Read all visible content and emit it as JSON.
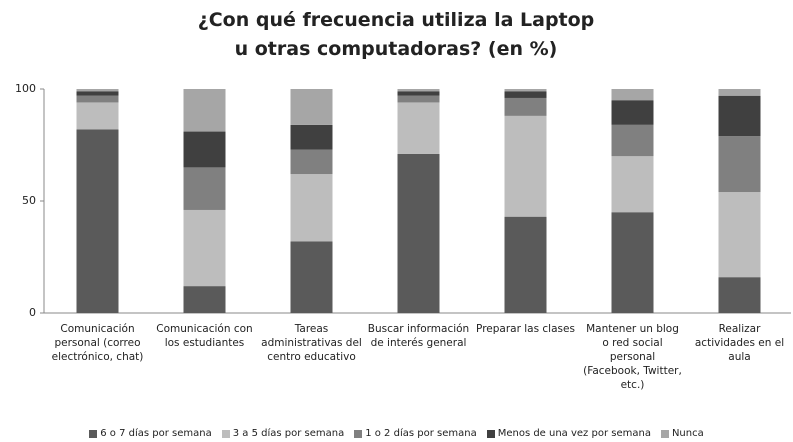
{
  "chart_data": {
    "type": "stacked_bar",
    "title": "¿Con qué frecuencia utiliza la Laptop u otras computadoras? (en %)",
    "categories": [
      "Comunicación personal (correo electrónico, chat)",
      "Comunicación con los estudiantes",
      "Tareas administrativas del centro educativo",
      "Buscar información de interés general",
      "Preparar las clases",
      "Mantener un blog o red social personal (Facebook, Twitter, etc.)",
      "Realizar actividades en el aula"
    ],
    "series": [
      {
        "name": "6 o 7 días por semana",
        "color": "#5a5a5a",
        "values": [
          82,
          12,
          32,
          71,
          43,
          45,
          16
        ]
      },
      {
        "name": "3 a 5 días por semana",
        "color": "#bdbdbd",
        "values": [
          12,
          34,
          30,
          23,
          45,
          25,
          38
        ]
      },
      {
        "name": "1 o 2 días por semana",
        "color": "#808080",
        "values": [
          3,
          19,
          11,
          3,
          8,
          14,
          25
        ]
      },
      {
        "name": "Menos de una vez por semana",
        "color": "#404040",
        "values": [
          2,
          16,
          11,
          2,
          3,
          11,
          18
        ]
      },
      {
        "name": "Nunca",
        "color": "#a6a6a6",
        "values": [
          1,
          19,
          16,
          1,
          1,
          5,
          3
        ]
      }
    ],
    "ylim": [
      0,
      100
    ],
    "yticks": [
      0,
      50,
      100
    ],
    "grid": false
  }
}
